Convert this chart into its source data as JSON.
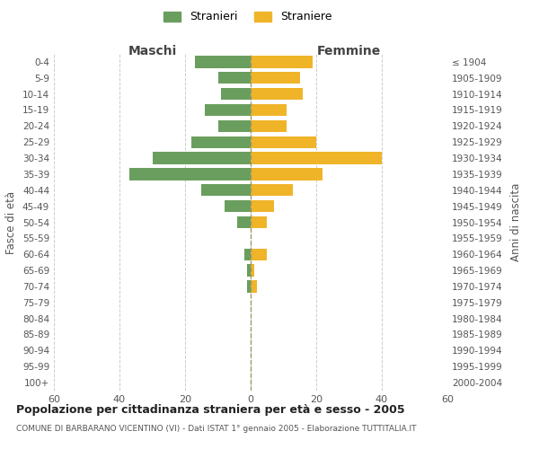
{
  "age_groups": [
    "0-4",
    "5-9",
    "10-14",
    "15-19",
    "20-24",
    "25-29",
    "30-34",
    "35-39",
    "40-44",
    "45-49",
    "50-54",
    "55-59",
    "60-64",
    "65-69",
    "70-74",
    "75-79",
    "80-84",
    "85-89",
    "90-94",
    "95-99",
    "100+"
  ],
  "birth_years": [
    "2000-2004",
    "1995-1999",
    "1990-1994",
    "1985-1989",
    "1980-1984",
    "1975-1979",
    "1970-1974",
    "1965-1969",
    "1960-1964",
    "1955-1959",
    "1950-1954",
    "1945-1949",
    "1940-1944",
    "1935-1939",
    "1930-1934",
    "1925-1929",
    "1920-1924",
    "1915-1919",
    "1910-1914",
    "1905-1909",
    "≤ 1904"
  ],
  "males": [
    17,
    10,
    9,
    14,
    10,
    18,
    30,
    37,
    15,
    8,
    4,
    0,
    2,
    1,
    1,
    0,
    0,
    0,
    0,
    0,
    0
  ],
  "females": [
    19,
    15,
    16,
    11,
    11,
    20,
    40,
    22,
    13,
    7,
    5,
    0,
    5,
    1,
    2,
    0,
    0,
    0,
    0,
    0,
    0
  ],
  "male_color": "#6a9e5e",
  "female_color": "#f0b429",
  "male_label": "Stranieri",
  "female_label": "Straniere",
  "title": "Popolazione per cittadinanza straniera per età e sesso - 2005",
  "subtitle": "COMUNE DI BARBARANO VICENTINO (VI) - Dati ISTAT 1° gennaio 2005 - Elaborazione TUTTITALIA.IT",
  "xlabel_left": "Maschi",
  "xlabel_right": "Femmine",
  "ylabel_left": "Fasce di età",
  "ylabel_right": "Anni di nascita",
  "xlim": 60,
  "background_color": "#ffffff",
  "grid_color": "#cccccc"
}
